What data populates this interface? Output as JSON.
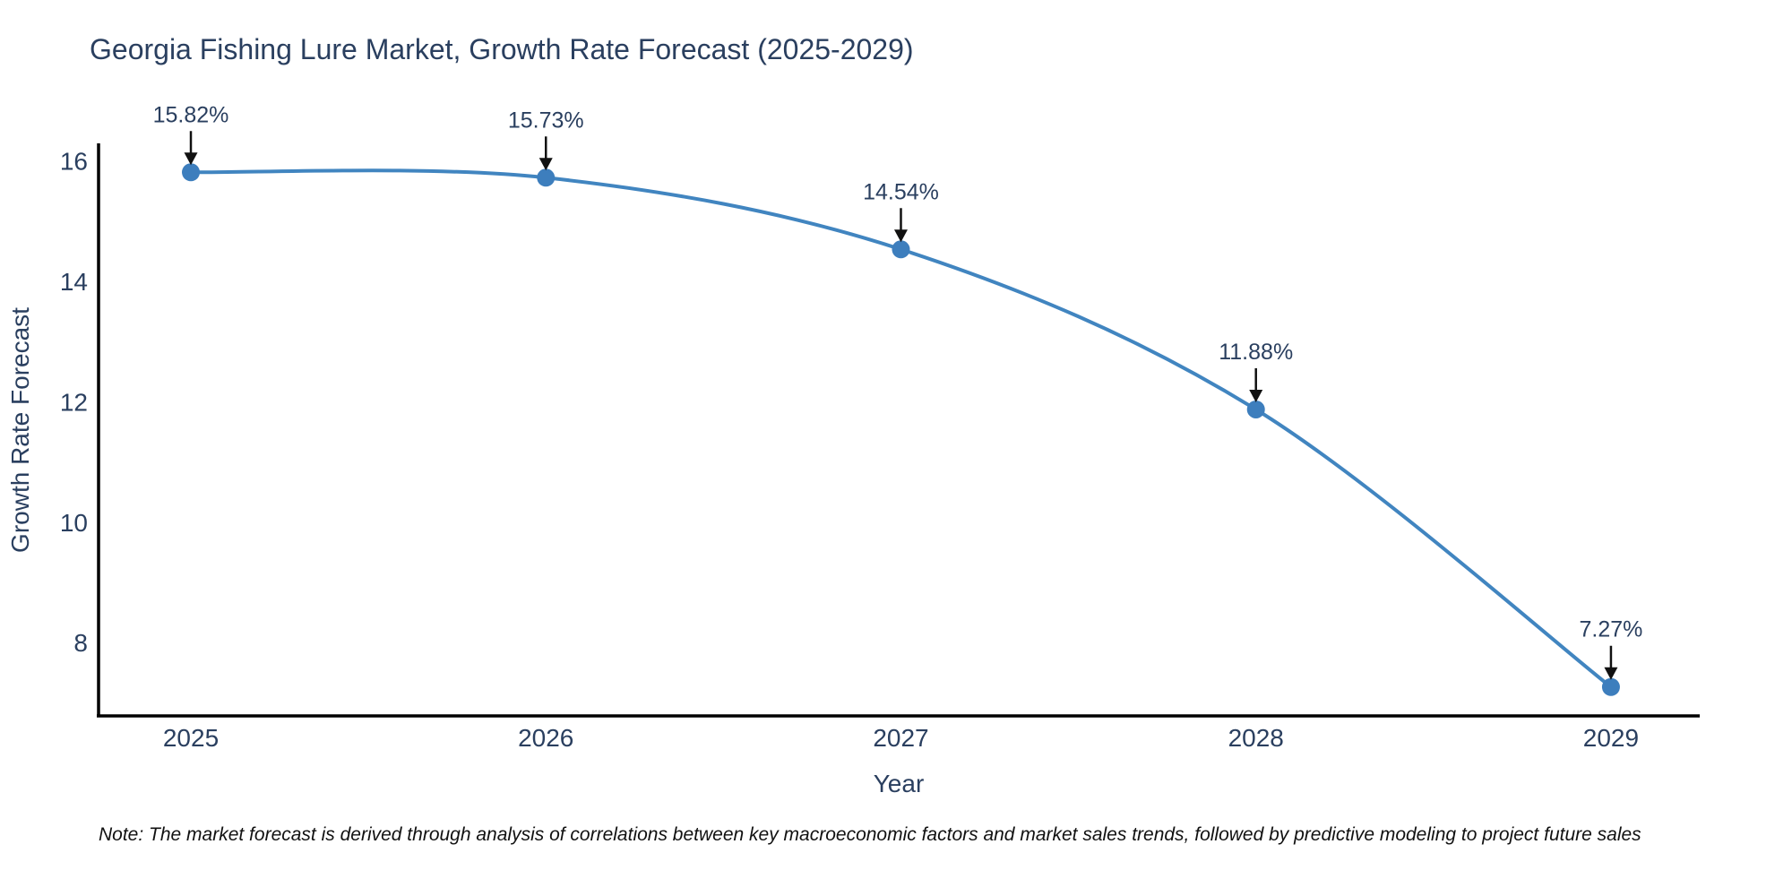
{
  "chart_data": {
    "type": "line",
    "title": "Georgia Fishing Lure Market, Growth Rate Forecast (2025-2029)",
    "xlabel": "Year",
    "ylabel": "Growth Rate Forecast",
    "series": [
      {
        "name": "Growth Rate Forecast",
        "x": [
          2025,
          2026,
          2027,
          2028,
          2029
        ],
        "values": [
          15.82,
          15.73,
          14.54,
          11.88,
          7.27
        ],
        "point_labels": [
          "15.82%",
          "15.73%",
          "14.54%",
          "11.88%",
          "7.27%"
        ]
      }
    ],
    "xticks": [
      "2025",
      "2026",
      "2027",
      "2028",
      "2029"
    ],
    "xtick_values": [
      2025,
      2026,
      2027,
      2028,
      2029
    ],
    "yticks": [
      8,
      10,
      12,
      14,
      16
    ],
    "xlim": [
      2024.74,
      2029.25
    ],
    "ylim": [
      6.79,
      16.3
    ],
    "line_shape": "spline",
    "grid": false,
    "legend_position": "none",
    "colors": {
      "line": "#4185c0",
      "marker": "#3d7ebd",
      "text": "#2a3f5f",
      "axis": "#000000",
      "arrow": "#111111",
      "background": "#ffffff"
    },
    "note": "Note: The market forecast is derived through analysis of correlations between key macroeconomic factors and market sales trends, followed by predictive modeling to project future sales"
  }
}
